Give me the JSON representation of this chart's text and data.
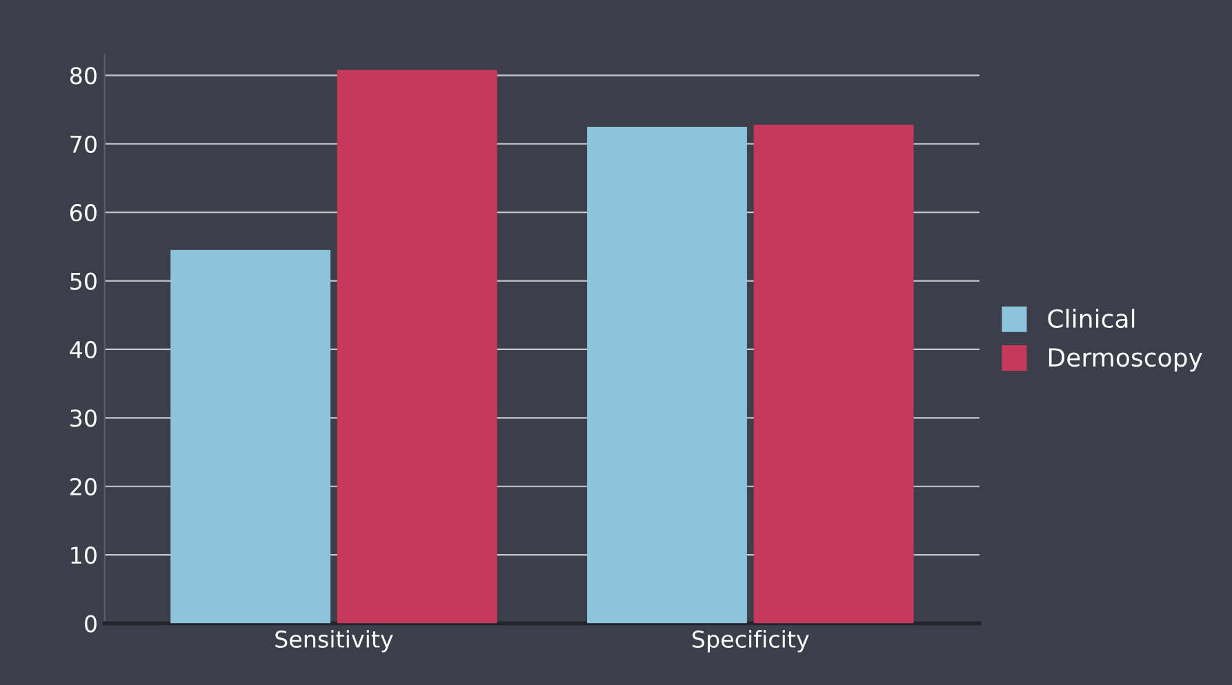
{
  "chart_data": {
    "type": "bar",
    "categories": [
      "Sensitivity",
      "Specificity"
    ],
    "series": [
      {
        "name": "Clinical",
        "color": "#8cc4dc",
        "values": [
          54.5,
          72.5
        ]
      },
      {
        "name": "Dermoscopy",
        "color": "#c8385a",
        "values": [
          80.8,
          72.8
        ]
      }
    ],
    "ylim": [
      0,
      83
    ],
    "yticks": [
      0,
      10,
      20,
      30,
      40,
      50,
      60,
      70,
      80
    ],
    "grid": "y",
    "legend": "right"
  }
}
